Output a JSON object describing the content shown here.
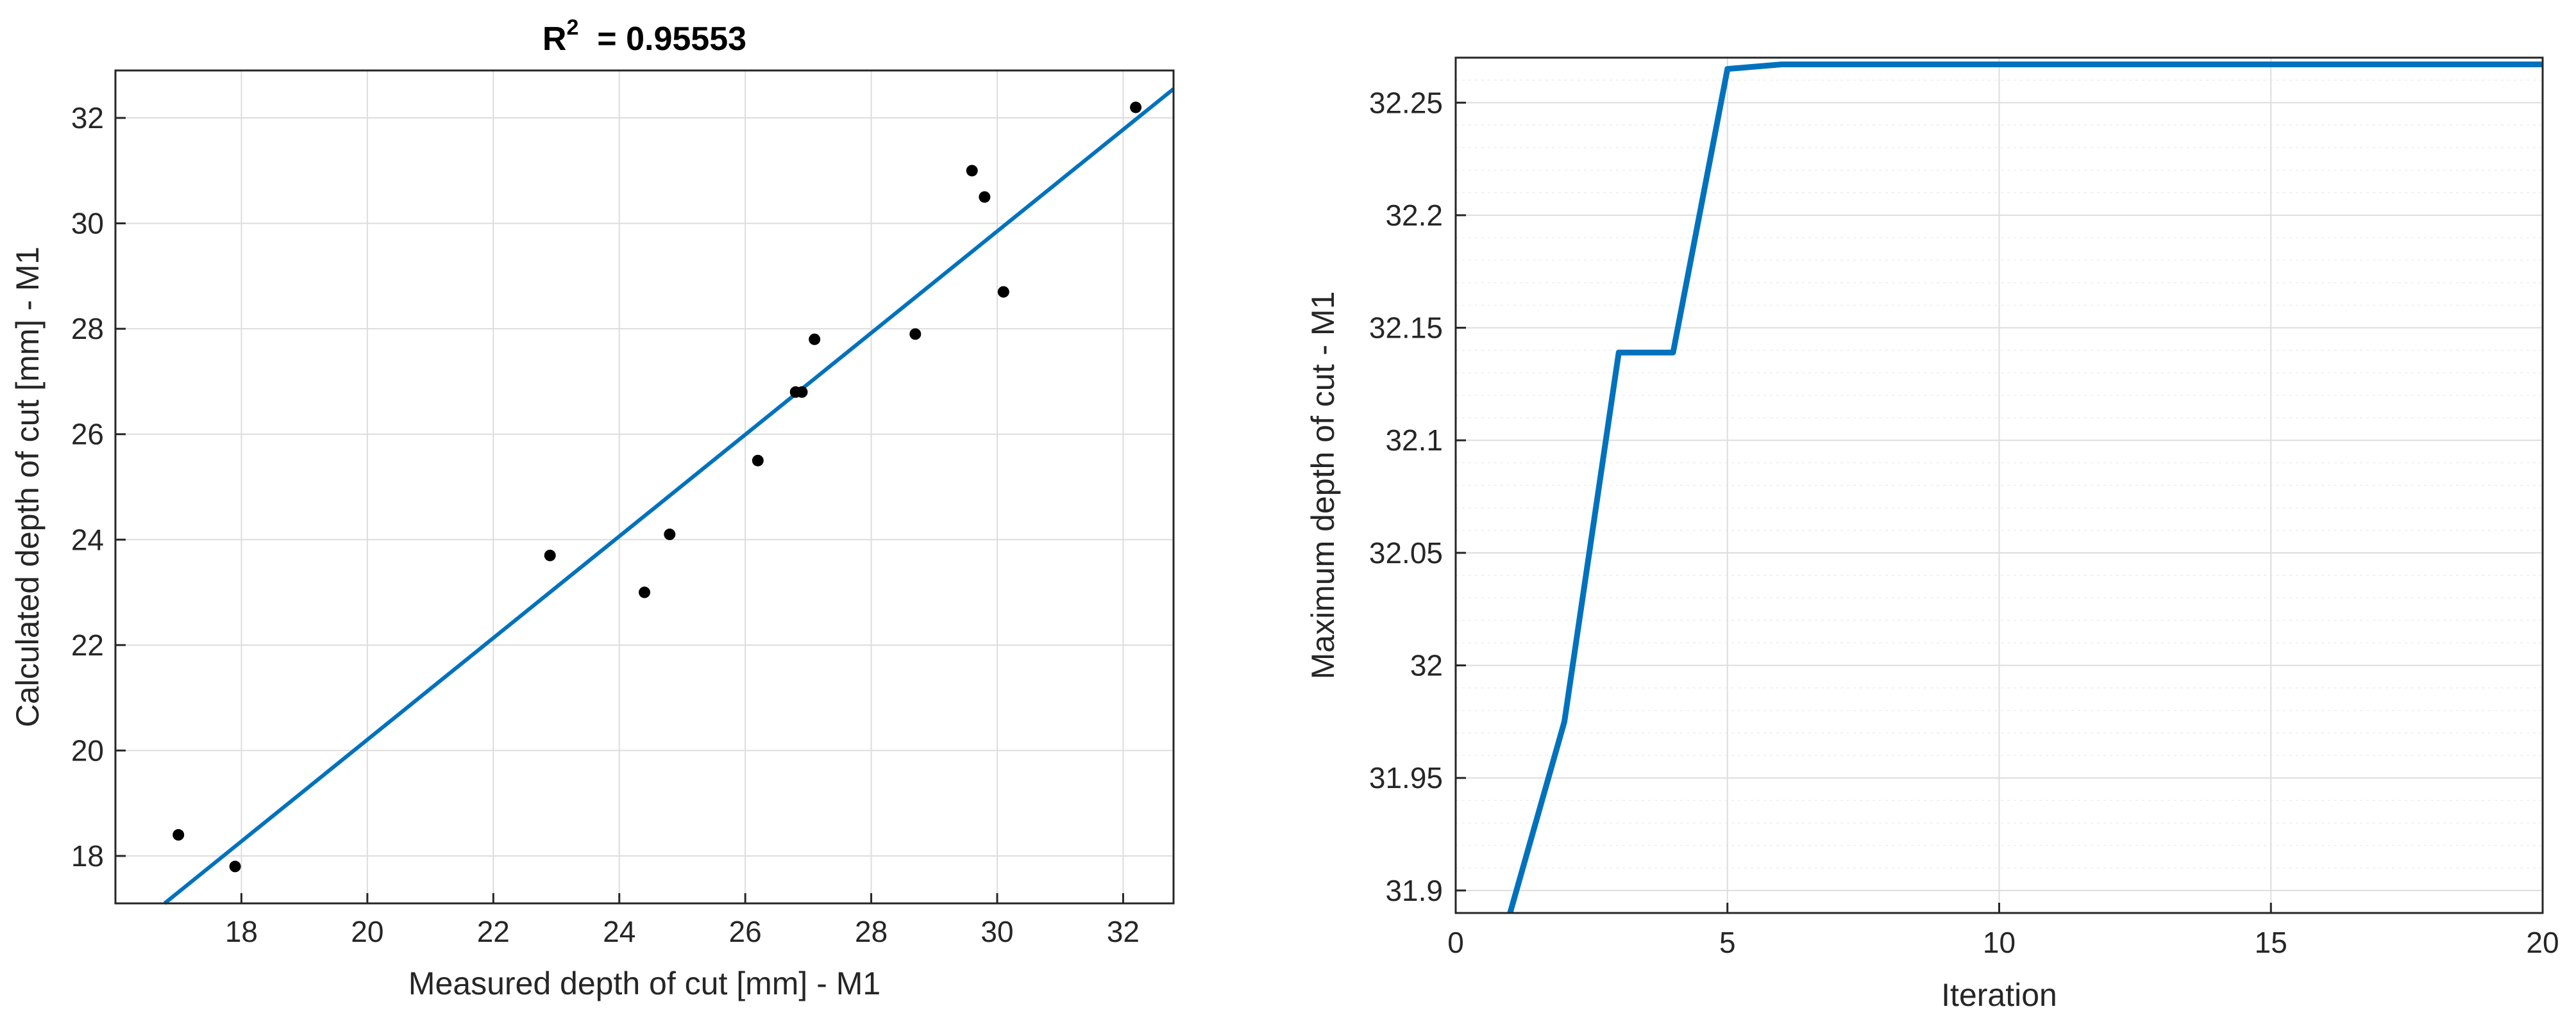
{
  "chart_data": [
    {
      "type": "scatter",
      "title_main": "R",
      "title_sup": "2",
      "title_rest": "  = 0.95553",
      "xlabel": "Measured depth of cut [mm] - M1",
      "ylabel": "Calculated depth of cut [mm] - M1",
      "xlim": [
        16.0,
        32.8
      ],
      "ylim": [
        17.1,
        32.9
      ],
      "xticks": [
        18,
        20,
        22,
        24,
        26,
        28,
        30,
        32
      ],
      "yticks": [
        18,
        20,
        22,
        24,
        26,
        28,
        30,
        32
      ],
      "grid": true,
      "colors": {
        "points": "#000000",
        "fit": "#0072BD",
        "grid": "#dddddd",
        "axis": "#262626"
      },
      "series": [
        {
          "kind": "points",
          "x": [
            17.0,
            17.9,
            22.9,
            24.4,
            24.8,
            26.2,
            26.8,
            26.9,
            27.1,
            28.7,
            29.6,
            29.8,
            30.1,
            32.2
          ],
          "y": [
            18.4,
            17.8,
            23.7,
            23.0,
            24.1,
            25.5,
            26.8,
            26.8,
            27.8,
            27.9,
            31.0,
            30.5,
            28.7,
            32.2
          ]
        },
        {
          "kind": "fit-line",
          "x": [
            16.78,
            32.8
          ],
          "y": [
            17.1,
            32.55
          ]
        }
      ]
    },
    {
      "type": "line",
      "xlabel": "Iteration",
      "ylabel": "Maximum depth of cut -  M1",
      "xlim": [
        0,
        20
      ],
      "ylim": [
        31.89,
        32.27
      ],
      "xticks": [
        0,
        5,
        10,
        15,
        20
      ],
      "yticks": [
        31.9,
        31.95,
        32,
        32.05,
        32.1,
        32.15,
        32.2,
        32.25
      ],
      "ytick_labels": [
        "31.9",
        "31.95",
        "32",
        "32.05",
        "32.1",
        "32.15",
        "32.2",
        "32.25"
      ],
      "grid": true,
      "minor_grid": true,
      "colors": {
        "line": "#0072BD",
        "grid": "#dddddd",
        "minor_grid": "#eeeeee",
        "axis": "#262626"
      },
      "series": [
        {
          "x": [
            1,
            2,
            3,
            4,
            5,
            6,
            7,
            8,
            9,
            10,
            11,
            12,
            13,
            14,
            15,
            16,
            17,
            18,
            19,
            20
          ],
          "y": [
            31.89,
            31.975,
            32.139,
            32.139,
            32.265,
            32.267,
            32.267,
            32.267,
            32.267,
            32.267,
            32.267,
            32.267,
            32.267,
            32.267,
            32.267,
            32.267,
            32.267,
            32.267,
            32.267,
            32.267
          ]
        }
      ]
    }
  ]
}
